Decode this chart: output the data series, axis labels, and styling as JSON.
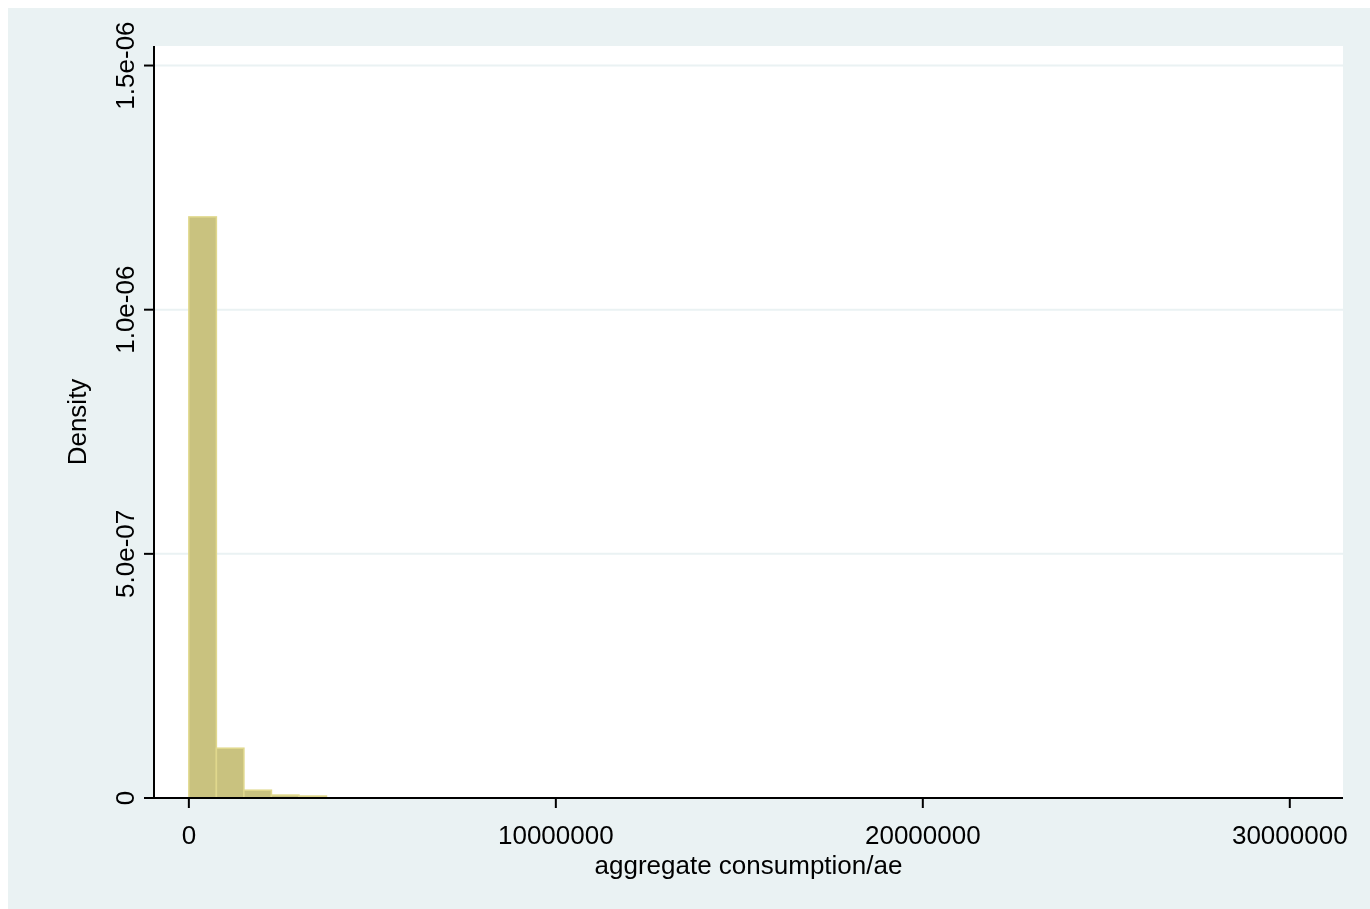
{
  "chart_data": {
    "type": "histogram",
    "xlabel": "aggregate consumption/ae",
    "ylabel": "Density",
    "bins": [
      0,
      750000,
      1500000,
      2250000,
      3000000,
      3750000
    ],
    "values": [
      1.19e-06,
      1.02e-07,
      1.6e-08,
      6e-09,
      4e-09
    ],
    "color": "#c9c27f",
    "xlim": [
      -950000,
      31450000
    ],
    "xticks": [
      0,
      10000000,
      20000000,
      30000000
    ],
    "ylim": [
      0,
      1.54e-06
    ],
    "yticks": [
      {
        "value": 0,
        "label": "0"
      },
      {
        "value": 5e-07,
        "label": "5.0e-07"
      },
      {
        "value": 1e-06,
        "label": "1.0e-06"
      },
      {
        "value": 1.5e-06,
        "label": "1.5e-06"
      }
    ],
    "grid": "y"
  }
}
